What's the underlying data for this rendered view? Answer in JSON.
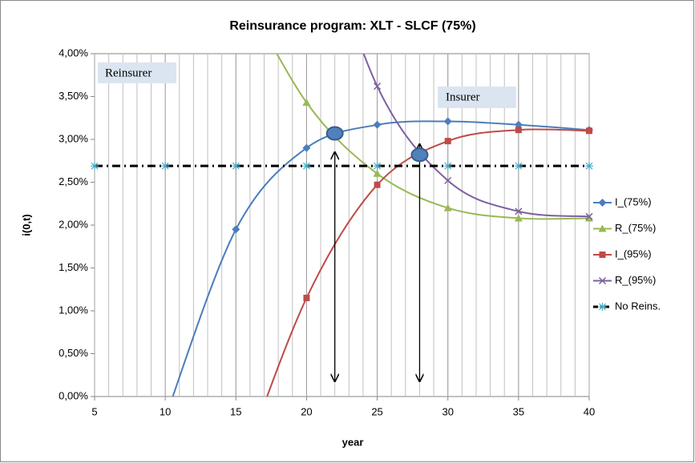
{
  "chart_data": {
    "type": "line",
    "title": "Reinsurance program: XLT - SLCF (75%)",
    "x_label": "year",
    "y_label": "i(0,t)",
    "xlim": [
      5,
      40
    ],
    "xticks": [
      5,
      10,
      15,
      20,
      25,
      30,
      35,
      40
    ],
    "ylim": [
      0,
      4
    ],
    "yticks": [
      {
        "value": 0,
        "label": "0,00%"
      },
      {
        "value": 0.5,
        "label": "0,50%"
      },
      {
        "value": 1,
        "label": "1,00%"
      },
      {
        "value": 1.5,
        "label": "1,50%"
      },
      {
        "value": 2,
        "label": "2,00%"
      },
      {
        "value": 2.5,
        "label": "2,50%"
      },
      {
        "value": 3,
        "label": "3,00%"
      },
      {
        "value": 3.5,
        "label": "3,50%"
      },
      {
        "value": 4,
        "label": "4,00%"
      }
    ],
    "grid": true,
    "legend": "right",
    "series": [
      {
        "name": "I_(75%)",
        "color": "#4a7ebb",
        "marker": "diamond",
        "x": [
          10,
          15,
          20,
          25,
          30,
          35,
          40
        ],
        "values": [
          -0.25,
          1.95,
          2.9,
          3.17,
          3.21,
          3.17,
          3.11
        ]
      },
      {
        "name": "R_(75%)",
        "color": "#98b954",
        "marker": "triangle",
        "x": [
          15,
          20,
          25,
          30,
          35,
          40
        ],
        "values": [
          4.9,
          3.43,
          2.6,
          2.2,
          2.08,
          2.08
        ]
      },
      {
        "name": "I_(95%)",
        "color": "#be4b48",
        "marker": "square",
        "x": [
          15,
          20,
          25,
          30,
          35,
          40
        ],
        "values": [
          -1.0,
          1.15,
          2.47,
          2.98,
          3.11,
          3.1
        ]
      },
      {
        "name": "R_(95%)",
        "color": "#7d60a0",
        "marker": "x",
        "x": [
          20,
          25,
          30,
          35,
          40
        ],
        "values": [
          6.0,
          3.62,
          2.52,
          2.16,
          2.1
        ]
      },
      {
        "name": "No Reins.",
        "color": "#000000",
        "marker": "star",
        "dash": true,
        "x": [
          5,
          10,
          15,
          20,
          25,
          30,
          35,
          40
        ],
        "values": [
          2.69,
          2.69,
          2.69,
          2.69,
          2.69,
          2.69,
          2.69,
          2.69
        ]
      }
    ],
    "annotations": [
      "Reinsurer",
      "Insurer"
    ]
  }
}
